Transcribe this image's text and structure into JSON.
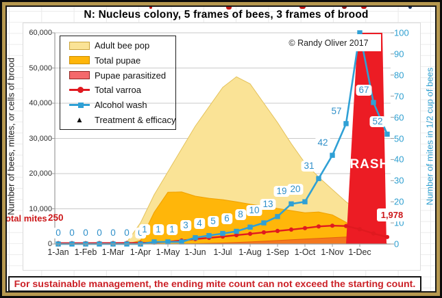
{
  "title": "N: Nucleus colony, 5 frames of bees, 3 frames of brood",
  "copyright": "© Randy Oliver 2017",
  "banner": "For sustainable management, the ending mite count can not exceed the starting count.",
  "annotations": {
    "total_mites_label": "Total mites",
    "start_count": "250",
    "end_count": "1,978",
    "crash": "CRASH"
  },
  "colors": {
    "adult_fill": "#FAE396",
    "adult_edge": "#E4C25C",
    "pupae_fill": "#FFB60A",
    "pupae_edge": "#EFA000",
    "parasitized_fill": "#F4771F",
    "parasitized_edge": "#E55F0F",
    "crash_red": "#EC1C24",
    "varroa_red": "#E0191F",
    "wash_blue": "#2FA0D5",
    "label_blue": "#2E8FC9",
    "legend_parasitized_fill": "#F4696B",
    "gridline": "#C9C9C9",
    "axis_line": "#9B9B9B",
    "gold_frame": "#B6984F"
  },
  "axes": {
    "left": {
      "title": "Number of bees, mites, or cells of brood",
      "ticks": [
        "60,000",
        "50,000",
        "40,000",
        "30,000",
        "20,000",
        "10,000",
        "0"
      ],
      "max": 60000
    },
    "right": {
      "title": "Number of mites in 1/2 cup of bees",
      "ticks": [
        "100",
        "90",
        "80",
        "70",
        "60",
        "50",
        "40",
        "30",
        "20",
        "10",
        "0"
      ],
      "max": 100
    },
    "x": {
      "ticks": [
        "1-Jan",
        "1-Feb",
        "1-Mar",
        "1-Apr",
        "1-May",
        "1-Jun",
        "1-Jul",
        "1-Aug",
        "1-Sep",
        "1-Oct",
        "1-Nov",
        "1-Dec"
      ]
    }
  },
  "legend": {
    "items": [
      {
        "label": "Adult bee pop",
        "swatch": "box",
        "fill": "#FAE396",
        "stroke": "#C9A33B"
      },
      {
        "label": "Total pupae",
        "swatch": "box",
        "fill": "#FFB60A",
        "stroke": "#C98C00"
      },
      {
        "label": "Pupae parasitized",
        "swatch": "box",
        "fill": "#F4696B",
        "stroke": "#8F2420"
      },
      {
        "label": "Total varroa",
        "swatch": "line-dot",
        "color": "#E0191F"
      },
      {
        "label": "Alcohol wash",
        "swatch": "line-square",
        "color": "#2FA0D5"
      },
      {
        "label": "Treatment & efficacy",
        "swatch": "triangle",
        "color": "#101010"
      }
    ]
  },
  "chart_data": {
    "type": "combo-area-line",
    "x_dates": [
      "1-Jan",
      "15-Jan",
      "1-Feb",
      "15-Feb",
      "1-Mar",
      "15-Mar",
      "1-Apr",
      "15-Apr",
      "1-May",
      "15-May",
      "1-Jun",
      "15-Jun",
      "1-Jul",
      "15-Jul",
      "1-Aug",
      "15-Aug",
      "1-Sep",
      "15-Sep",
      "1-Oct",
      "15-Oct",
      "1-Nov",
      "15-Nov",
      "1-Dec",
      "15-Dec",
      "31-Dec"
    ],
    "ylim_left": [
      0,
      60000
    ],
    "ylim_right": [
      0,
      100
    ],
    "series": [
      {
        "name": "Adult bee pop",
        "kind": "area",
        "axis": "left",
        "fill": "#FAE396",
        "edge": "#E4C25C",
        "values": [
          0,
          0,
          0,
          0,
          0,
          500,
          6000,
          14000,
          20500,
          27000,
          33500,
          39000,
          44500,
          47500,
          45500,
          40000,
          34500,
          28500,
          23000,
          19000,
          15500,
          12000,
          9000,
          4000,
          0
        ]
      },
      {
        "name": "Total pupae",
        "kind": "area",
        "axis": "left",
        "fill": "#FFB60A",
        "edge": "#EFA000",
        "values": [
          0,
          0,
          0,
          0,
          0,
          0,
          1000,
          9000,
          14700,
          14800,
          13600,
          13000,
          12600,
          12000,
          11300,
          10700,
          10100,
          9500,
          8900,
          9100,
          8300,
          6200,
          2300,
          800,
          0
        ]
      },
      {
        "name": "Pupae parasitized",
        "kind": "area",
        "axis": "left",
        "fill": "#F4771F",
        "edge": "#E55F0F",
        "values": [
          0,
          0,
          0,
          0,
          0,
          0,
          0,
          0,
          0,
          50,
          100,
          200,
          300,
          450,
          600,
          800,
          1000,
          1200,
          1400,
          1600,
          1800,
          2000,
          1400,
          600,
          0
        ]
      },
      {
        "name": "Total varroa",
        "kind": "line-dot",
        "axis": "left",
        "color": "#E0191F",
        "values": [
          250,
          255,
          260,
          270,
          280,
          290,
          320,
          420,
          650,
          1000,
          1400,
          1750,
          2100,
          2500,
          2900,
          3300,
          3700,
          4100,
          4500,
          5000,
          5200,
          5100,
          4200,
          3000,
          1978
        ]
      },
      {
        "name": "Alcohol wash",
        "kind": "line-square",
        "axis": "right",
        "color": "#2FA0D5",
        "values": [
          0,
          0,
          0,
          0,
          0,
          0,
          0,
          1,
          1,
          1,
          3,
          4,
          5,
          6,
          8,
          10,
          13,
          19,
          20,
          31,
          42,
          57,
          100,
          67,
          52
        ],
        "labels": [
          "0",
          "0",
          "0",
          "0",
          "0",
          "0",
          "0",
          "1",
          "1",
          "1",
          "3",
          "4",
          "5",
          "6",
          "8",
          "10",
          "13",
          "19",
          "20",
          "31",
          "42",
          "57",
          null,
          "67",
          "52"
        ]
      }
    ],
    "crash_region": {
      "label": "CRASH",
      "polygon_idx_value": [
        [
          21.0,
          0
        ],
        [
          21.85,
          100
        ],
        [
          23.65,
          100
        ],
        [
          23.95,
          0
        ]
      ]
    }
  }
}
